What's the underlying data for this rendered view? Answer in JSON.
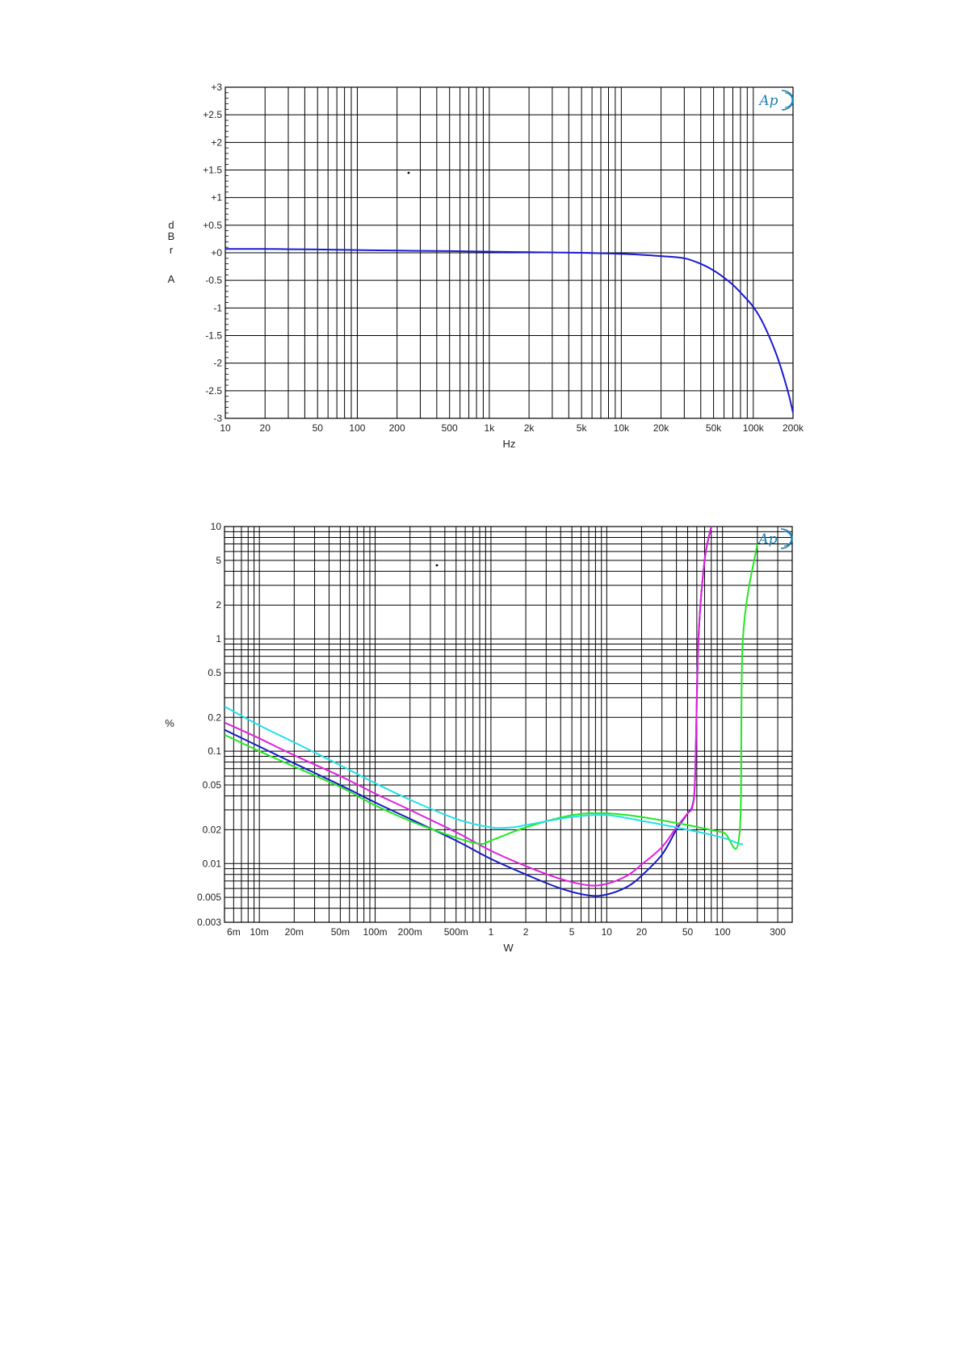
{
  "chart_data": [
    {
      "type": "line",
      "title": "",
      "xlabel": "Hz",
      "ylabel_letters": [
        "d",
        "B",
        "r",
        "",
        "A"
      ],
      "ylabel": "dBr A",
      "xscale": "log",
      "xlim": [
        10,
        200000
      ],
      "ylim": [
        -3,
        3
      ],
      "grid": true,
      "logo": "Ap",
      "x_ticks": [
        10,
        20,
        50,
        100,
        200,
        500,
        1000,
        2000,
        5000,
        10000,
        20000,
        50000,
        100000,
        200000
      ],
      "x_tick_labels": [
        "10",
        "20",
        "50",
        "100",
        "200",
        "500",
        "1k",
        "2k",
        "5k",
        "10k",
        "20k",
        "50k",
        "100k",
        "200k"
      ],
      "y_ticks": [
        3,
        2.5,
        2,
        1.5,
        1,
        0.5,
        0,
        -0.5,
        -1,
        -1.5,
        -2,
        -2.5,
        -3
      ],
      "y_tick_labels": [
        "+3",
        "+2.5",
        "+2",
        "+1.5",
        "+1",
        "+0.5",
        "+0",
        "-0.5",
        "-1",
        "-1.5",
        "-2",
        "-2.5",
        "-3"
      ],
      "series": [
        {
          "color": "#1a1ad6",
          "x": [
            10,
            20,
            30,
            50,
            100,
            200,
            300,
            500,
            1000,
            2000,
            5000,
            10000,
            15000,
            20000,
            30000,
            40000,
            50000,
            60000,
            70000,
            80000,
            100000,
            120000,
            150000,
            180000,
            200000
          ],
          "y": [
            0.07,
            0.07,
            0.065,
            0.06,
            0.05,
            0.04,
            0.035,
            0.03,
            0.02,
            0.01,
            0.0,
            -0.02,
            -0.04,
            -0.06,
            -0.1,
            -0.2,
            -0.32,
            -0.45,
            -0.58,
            -0.72,
            -0.98,
            -1.3,
            -1.85,
            -2.45,
            -2.9
          ]
        }
      ]
    },
    {
      "type": "line",
      "title": "",
      "xlabel": "W",
      "ylabel": "%",
      "xscale": "log",
      "yscale": "log",
      "xlim": [
        0.005,
        400
      ],
      "ylim": [
        0.003,
        10
      ],
      "grid": true,
      "logo": "Ap",
      "x_ticks": [
        0.006,
        0.01,
        0.02,
        0.05,
        0.1,
        0.2,
        0.5,
        1,
        2,
        5,
        10,
        20,
        50,
        100,
        300
      ],
      "x_tick_labels": [
        "6m",
        "10m",
        "20m",
        "50m",
        "100m",
        "200m",
        "500m",
        "1",
        "2",
        "5",
        "10",
        "20",
        "50",
        "100",
        "300"
      ],
      "y_ticks": [
        10,
        5,
        2,
        1,
        0.5,
        0.2,
        0.1,
        0.05,
        0.02,
        0.01,
        0.005,
        0.003
      ],
      "y_tick_labels": [
        "10",
        "5",
        "2",
        "1",
        "0.5",
        "0.2",
        "0.1",
        "0.05",
        "0.02",
        "0.01",
        "0.005",
        "0.003"
      ],
      "series": [
        {
          "color": "#1818c8",
          "x": [
            0.005,
            0.01,
            0.02,
            0.05,
            0.1,
            0.2,
            0.5,
            1,
            2,
            4,
            7,
            10,
            15,
            20,
            30,
            40,
            50,
            55,
            58,
            62,
            70,
            80
          ],
          "y": [
            0.155,
            0.11,
            0.078,
            0.05,
            0.035,
            0.025,
            0.016,
            0.011,
            0.008,
            0.006,
            0.0052,
            0.0053,
            0.0062,
            0.0078,
            0.012,
            0.02,
            0.028,
            0.033,
            0.06,
            1.0,
            5.0,
            10.0
          ]
        },
        {
          "color": "#e020e0",
          "x": [
            0.005,
            0.01,
            0.02,
            0.05,
            0.1,
            0.2,
            0.5,
            1,
            2,
            4,
            7,
            10,
            15,
            20,
            30,
            40,
            50,
            55,
            58,
            62,
            70,
            80
          ],
          "y": [
            0.18,
            0.13,
            0.092,
            0.06,
            0.042,
            0.03,
            0.019,
            0.013,
            0.0095,
            0.0073,
            0.0064,
            0.0066,
            0.0078,
            0.0098,
            0.014,
            0.021,
            0.028,
            0.032,
            0.06,
            1.0,
            5.0,
            10.0
          ]
        },
        {
          "color": "#22e822",
          "x": [
            0.005,
            0.01,
            0.02,
            0.05,
            0.1,
            0.2,
            0.5,
            0.8,
            1,
            2,
            5,
            10,
            20,
            50,
            100,
            140,
            150,
            200
          ],
          "y": [
            0.14,
            0.1,
            0.073,
            0.048,
            0.033,
            0.024,
            0.017,
            0.015,
            0.016,
            0.021,
            0.027,
            0.028,
            0.026,
            0.022,
            0.019,
            0.018,
            1.0,
            7.0
          ]
        },
        {
          "color": "#22e0e8",
          "x": [
            0.005,
            0.01,
            0.02,
            0.05,
            0.1,
            0.2,
            0.5,
            1,
            1.5,
            2,
            5,
            10,
            20,
            50,
            100,
            140,
            150
          ],
          "y": [
            0.25,
            0.17,
            0.12,
            0.075,
            0.052,
            0.037,
            0.025,
            0.021,
            0.021,
            0.022,
            0.026,
            0.027,
            0.024,
            0.02,
            0.017,
            0.015,
            0.015
          ]
        }
      ]
    }
  ]
}
